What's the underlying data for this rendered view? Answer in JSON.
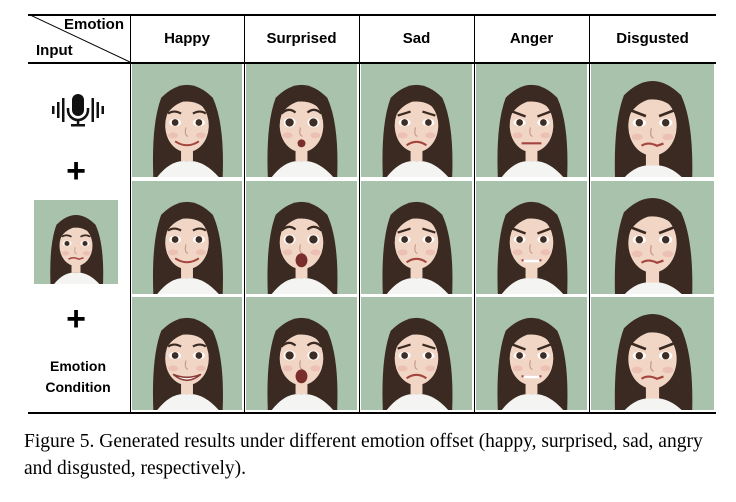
{
  "table": {
    "corner_top": "Emotion",
    "corner_bottom": "Input",
    "columns": [
      "Happy",
      "Surprised",
      "Sad",
      "Anger",
      "Disgusted"
    ],
    "input_column": {
      "audio_icon": "microphone-waveform-icon",
      "plus_symbol": "+",
      "condition_label_line1": "Emotion",
      "condition_label_line2": "Condition"
    },
    "rows": 3,
    "colors": {
      "background": "#a9c2ab",
      "hair": "#3b2a22",
      "skin": "#f1d6c6",
      "shirt": "#f4f4f2"
    }
  },
  "caption": "Figure 5. Generated results under different emotion offset (happy, surprised, sad, angry and disgusted, respectively)."
}
